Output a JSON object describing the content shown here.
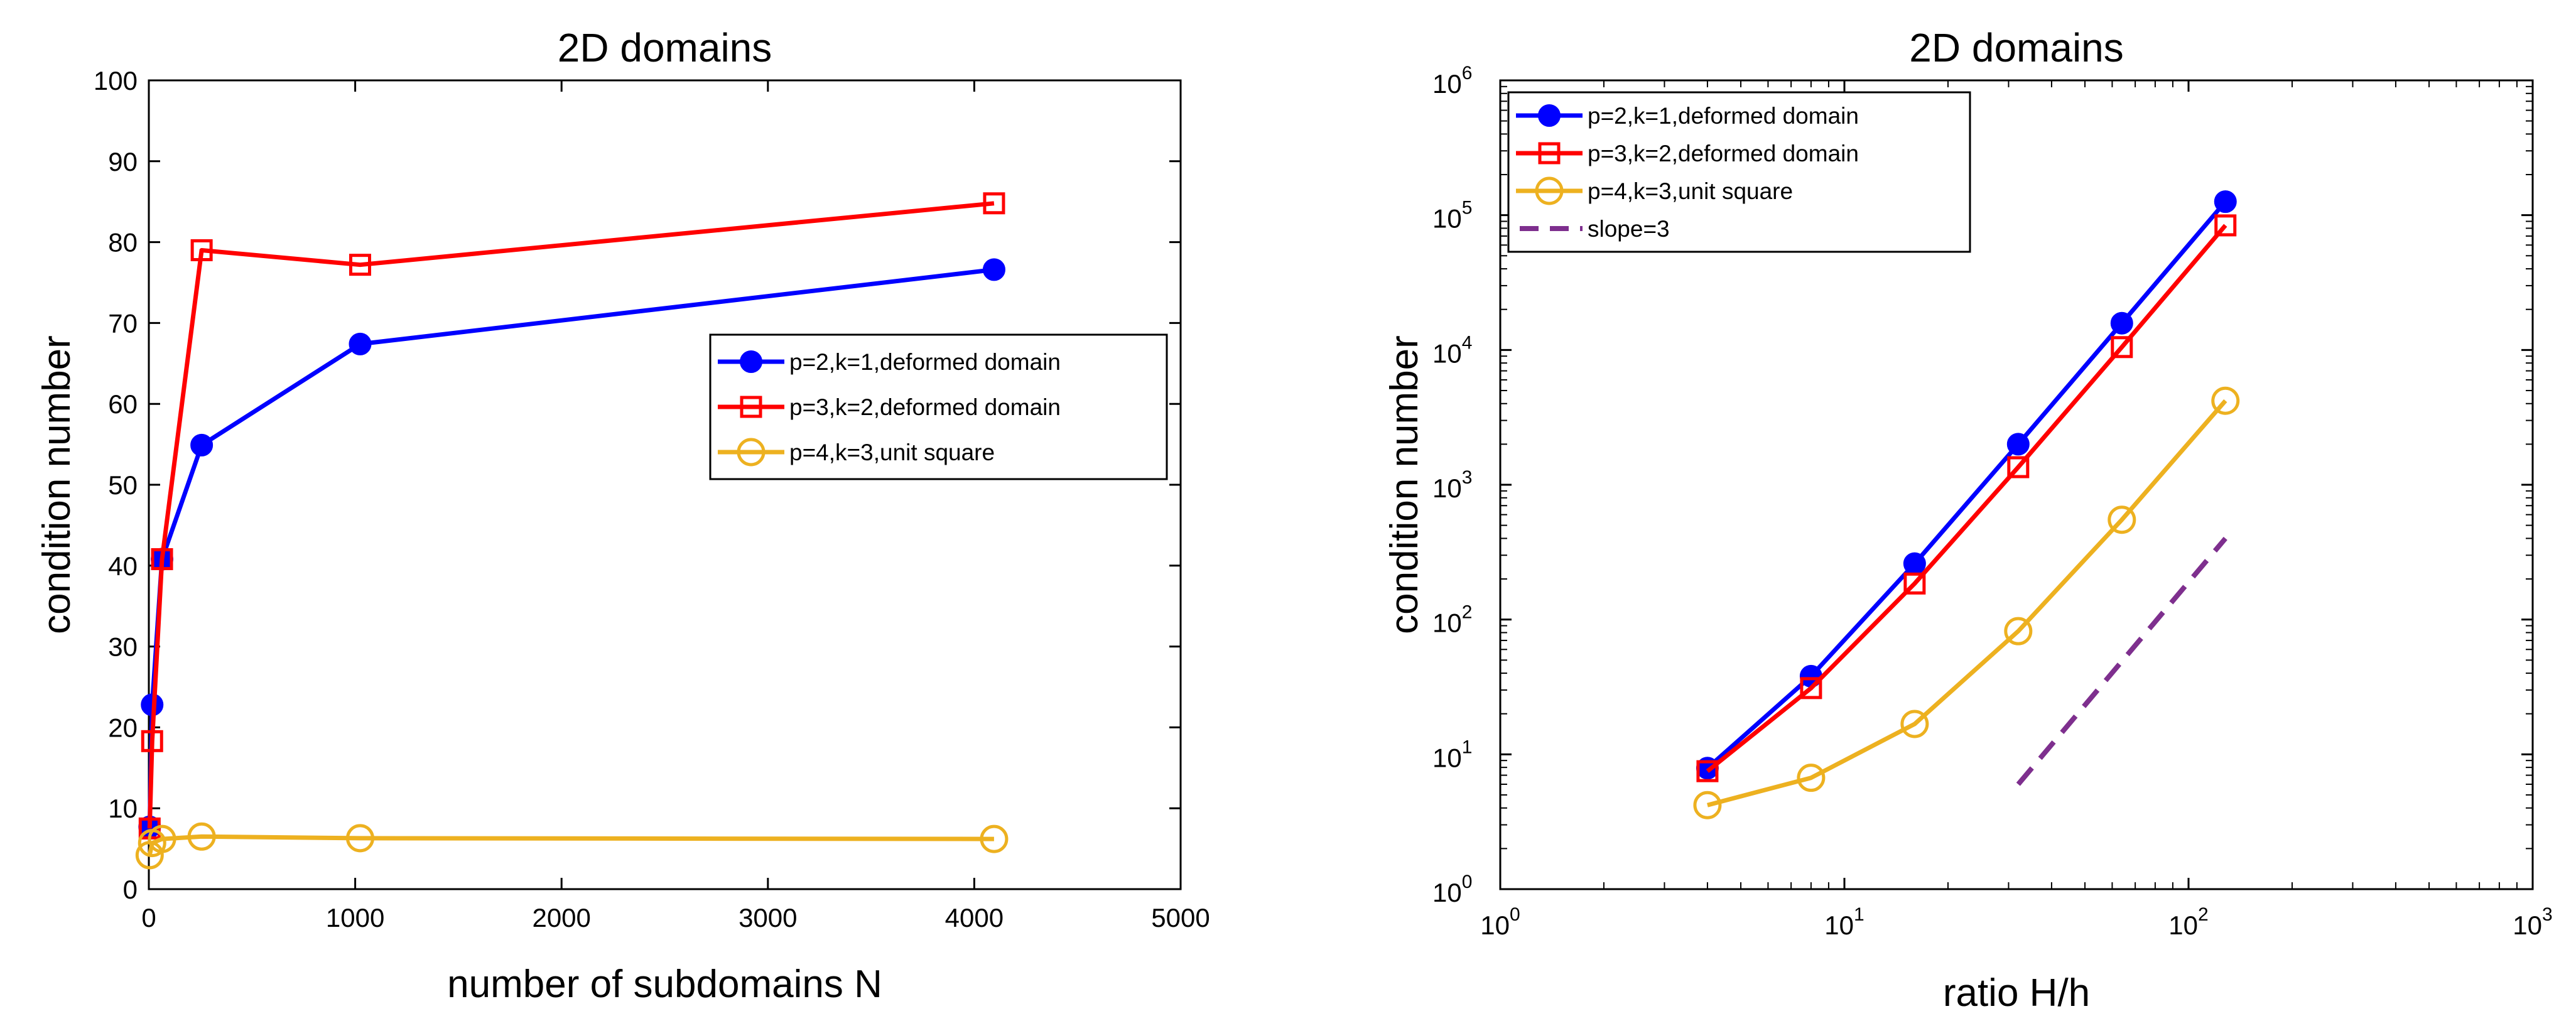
{
  "chart_data": [
    {
      "type": "line",
      "title": "2D domains",
      "xlabel": "number of subdomains N",
      "ylabel": "condition number",
      "xscale": "linear",
      "yscale": "linear",
      "xlim": [
        0,
        5000
      ],
      "ylim": [
        0,
        100
      ],
      "xticks": [
        0,
        1000,
        2000,
        3000,
        4000,
        5000
      ],
      "xtick_labels": [
        "0",
        "1000",
        "2000",
        "3000",
        "4000",
        "5000"
      ],
      "yticks": [
        0,
        10,
        20,
        30,
        40,
        50,
        60,
        70,
        80,
        90,
        100
      ],
      "ytick_labels": [
        "0",
        "10",
        "20",
        "30",
        "40",
        "50",
        "60",
        "70",
        "80",
        "90",
        "100"
      ],
      "grid": false,
      "legend_position": "center-right",
      "series": [
        {
          "name": "p=2,k=1,deformed domain",
          "color": "#0000ff",
          "marker": "filled-circle",
          "linestyle": "solid",
          "x": [
            4,
            16,
            64,
            256,
            1024,
            4096
          ],
          "y": [
            7.7,
            22.8,
            40.8,
            54.9,
            67.4,
            76.6
          ]
        },
        {
          "name": "p=3,k=2,deformed domain",
          "color": "#ff0000",
          "marker": "open-square",
          "linestyle": "solid",
          "x": [
            4,
            16,
            64,
            256,
            1024,
            4096
          ],
          "y": [
            7.5,
            18.3,
            40.8,
            79.0,
            77.2,
            84.8
          ]
        },
        {
          "name": "p=4,k=3,unit square",
          "color": "#edb120",
          "marker": "open-circle",
          "linestyle": "solid",
          "x": [
            4,
            16,
            64,
            256,
            1024,
            4096
          ],
          "y": [
            4.2,
            5.7,
            6.2,
            6.5,
            6.3,
            6.2
          ]
        }
      ]
    },
    {
      "type": "line",
      "title": "2D domains",
      "xlabel": "ratio H/h",
      "ylabel": "condition number",
      "xscale": "log",
      "yscale": "log",
      "xlim": [
        1,
        1000
      ],
      "ylim": [
        1,
        1000000
      ],
      "xticks": [
        1,
        10,
        100,
        1000
      ],
      "xtick_labels": [
        [
          "10",
          "0"
        ],
        [
          "10",
          "1"
        ],
        [
          "10",
          "2"
        ],
        [
          "10",
          "3"
        ]
      ],
      "yticks": [
        1,
        10,
        100,
        1000,
        10000,
        100000,
        1000000
      ],
      "ytick_labels": [
        [
          "10",
          "0"
        ],
        [
          "10",
          "1"
        ],
        [
          "10",
          "2"
        ],
        [
          "10",
          "3"
        ],
        [
          "10",
          "4"
        ],
        [
          "10",
          "5"
        ],
        [
          "10",
          "6"
        ]
      ],
      "grid": false,
      "legend_position": "top-left",
      "series": [
        {
          "name": "p=2,k=1,deformed domain",
          "color": "#0000ff",
          "marker": "filled-circle",
          "linestyle": "solid",
          "x": [
            4,
            8,
            16,
            32,
            64,
            128
          ],
          "y": [
            7.9,
            38,
            260,
            2000,
            15800,
            126000
          ]
        },
        {
          "name": "p=3,k=2,deformed domain",
          "color": "#ff0000",
          "marker": "open-square",
          "linestyle": "solid",
          "x": [
            4,
            8,
            16,
            32,
            64,
            128
          ],
          "y": [
            7.5,
            31,
            185,
            1350,
            10500,
            84000
          ]
        },
        {
          "name": "p=4,k=3,unit square",
          "color": "#edb120",
          "marker": "open-circle",
          "linestyle": "solid",
          "x": [
            4,
            8,
            16,
            32,
            64,
            128
          ],
          "y": [
            4.2,
            6.7,
            16.8,
            82,
            550,
            4200
          ]
        },
        {
          "name": "slope=3",
          "color": "#7e2f8e",
          "marker": "none",
          "linestyle": "dashed",
          "x": [
            32,
            128
          ],
          "y": [
            6,
            400
          ]
        }
      ]
    }
  ]
}
